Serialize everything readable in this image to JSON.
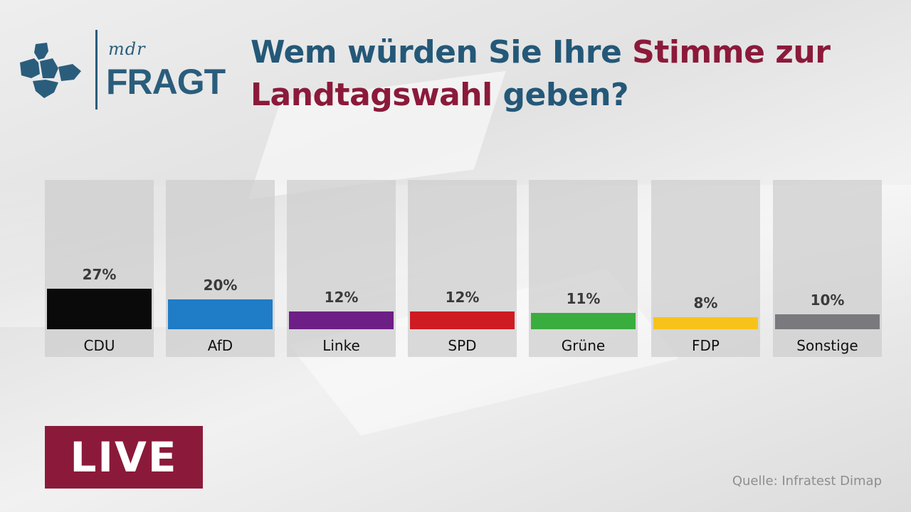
{
  "brand": {
    "small": "mdr",
    "big": "FRAGT"
  },
  "headline": {
    "part1": "Wem würden Sie Ihre ",
    "part2": "Stimme zur",
    "part3": "Landtagswahl",
    "part4": " geben?"
  },
  "chart_data": {
    "type": "bar",
    "title": "Wem würden Sie Ihre Stimme zur Landtagswahl geben?",
    "categories": [
      "CDU",
      "AfD",
      "Linke",
      "SPD",
      "Grüne",
      "FDP",
      "Sonstige"
    ],
    "values": [
      27,
      20,
      12,
      12,
      11,
      8,
      10
    ],
    "value_labels": [
      "27%",
      "20%",
      "12%",
      "12%",
      "11%",
      "8%",
      "10%"
    ],
    "colors": [
      "#0a0a0a",
      "#1f7cc7",
      "#6d1f85",
      "#cf1b22",
      "#3aad3f",
      "#f7c31a",
      "#7a7a7e"
    ],
    "unit": "%",
    "ylim": [
      0,
      100
    ],
    "xlabel": "",
    "ylabel": ""
  },
  "badge": {
    "label": "LIVE"
  },
  "source": {
    "label": "Quelle: Infratest Dimap"
  },
  "colors": {
    "brand_blue": "#245878",
    "brand_red": "#8b1a3a"
  }
}
